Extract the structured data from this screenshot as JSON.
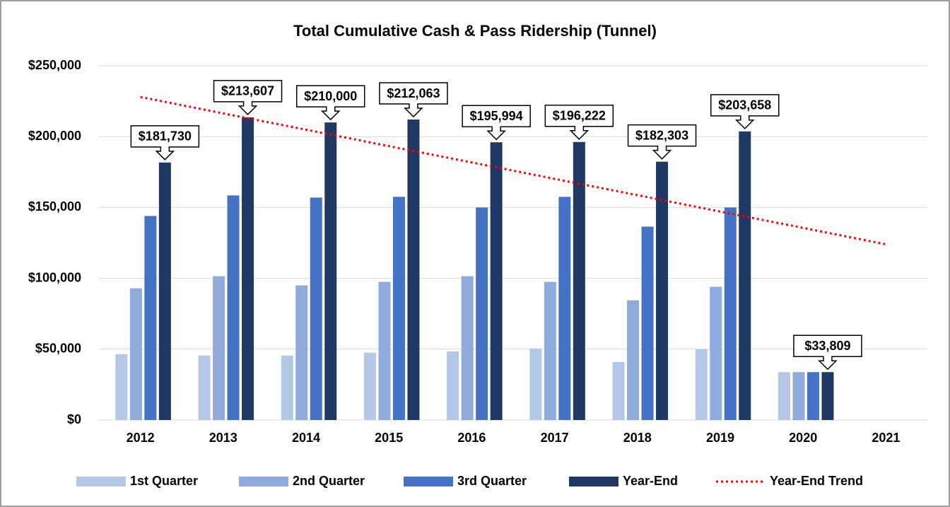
{
  "chart_data": {
    "type": "bar",
    "title": "Total Cumulative Cash & Pass Ridership (Tunnel)",
    "categories": [
      "2012",
      "2013",
      "2014",
      "2015",
      "2016",
      "2017",
      "2018",
      "2019",
      "2020",
      "2021"
    ],
    "series": [
      {
        "name": "1st Quarter",
        "color": "#b4c7e7",
        "values": [
          46500,
          45500,
          45500,
          47500,
          48500,
          50500,
          41000,
          50000,
          33809,
          null
        ]
      },
      {
        "name": "2nd Quarter",
        "color": "#8faadc",
        "values": [
          93000,
          101500,
          95000,
          97500,
          101500,
          97500,
          84500,
          94000,
          33809,
          null
        ]
      },
      {
        "name": "3rd Quarter",
        "color": "#4472c4",
        "values": [
          144000,
          158500,
          157000,
          157500,
          150000,
          157500,
          136500,
          150000,
          33809,
          null
        ]
      },
      {
        "name": "Year-End",
        "color": "#203864",
        "values": [
          181730,
          213607,
          210000,
          212063,
          195994,
          196222,
          182303,
          203658,
          33809,
          null
        ],
        "value_labels": [
          "$181,730",
          "$213,607",
          "$210,000",
          "$212,063",
          "$195,994",
          "$196,222",
          "$182,303",
          "$203,658",
          "$33,809",
          null
        ]
      },
      {
        "name": "Year-End Trend",
        "color": "#ff0000",
        "type": "line",
        "style": "dotted",
        "values": [
          228000,
          216400,
          204900,
          193300,
          181800,
          170200,
          158700,
          147100,
          135600,
          124000
        ]
      }
    ],
    "ylim": [
      0,
      250000
    ],
    "yticks": [
      {
        "value": 0,
        "label": "$0"
      },
      {
        "value": 50000,
        "label": "$50,000"
      },
      {
        "value": 100000,
        "label": "$100,000"
      },
      {
        "value": 150000,
        "label": "$150,000"
      },
      {
        "value": 200000,
        "label": "$200,000"
      },
      {
        "value": 250000,
        "label": "$250,000"
      }
    ],
    "grid": true,
    "legend": "bottom"
  }
}
